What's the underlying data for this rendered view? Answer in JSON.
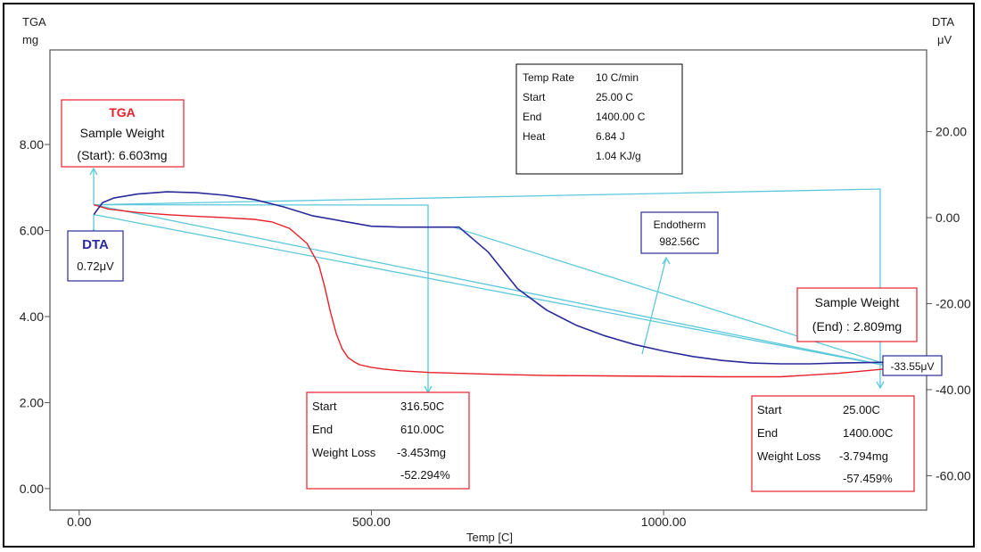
{
  "colors": {
    "tga": "#e8202a",
    "dta": "#2a2a9a",
    "leader": "#5cc8dc",
    "axis": "#555555",
    "frame": "#000000"
  },
  "chart_data": {
    "type": "line",
    "xlabel": "Temp  [C]",
    "ylabel": "TGA",
    "ylabel_unit": "mg",
    "y2label": "DTA",
    "y2label_unit": "μV",
    "xlim": [
      -50,
      1450
    ],
    "ylim": [
      -0.5,
      10.2
    ],
    "y2lim": [
      -68,
      39
    ],
    "x_ticks": [
      0,
      500,
      1000
    ],
    "x_tick_labels": [
      "0.00",
      "500.00",
      "1000.00"
    ],
    "y_ticks": [
      0,
      2,
      4,
      6,
      8
    ],
    "y_tick_labels": [
      "0.00",
      "2.00",
      "4.00",
      "6.00",
      "8.00"
    ],
    "y2_ticks": [
      20,
      0,
      -20,
      -40,
      -60
    ],
    "y2_tick_labels": [
      "20.00",
      "0.00",
      "-20.00",
      "-40.00",
      "-60.00"
    ],
    "grid": false,
    "series": [
      {
        "name": "TGA",
        "axis": "left",
        "x": [
          25,
          50,
          100,
          150,
          200,
          250,
          300,
          330,
          360,
          390,
          410,
          420,
          430,
          440,
          450,
          460,
          470,
          480,
          500,
          520,
          550,
          600,
          700,
          800,
          900,
          1000,
          1100,
          1200,
          1300,
          1400
        ],
        "values": [
          6.6,
          6.5,
          6.42,
          6.37,
          6.33,
          6.3,
          6.26,
          6.2,
          6.05,
          5.7,
          5.2,
          4.7,
          4.1,
          3.6,
          3.25,
          3.05,
          2.95,
          2.88,
          2.82,
          2.78,
          2.74,
          2.7,
          2.66,
          2.63,
          2.62,
          2.61,
          2.6,
          2.6,
          2.68,
          2.81
        ]
      },
      {
        "name": "DTA",
        "axis": "right",
        "x": [
          25,
          40,
          60,
          100,
          150,
          200,
          250,
          300,
          350,
          400,
          450,
          500,
          550,
          600,
          650,
          700,
          750,
          800,
          850,
          900,
          950,
          1000,
          1050,
          1100,
          1150,
          1200,
          1250,
          1300,
          1350,
          1400
        ],
        "values": [
          0.72,
          3.5,
          4.6,
          5.5,
          6.0,
          5.8,
          5.2,
          4.2,
          2.5,
          0.4,
          -0.8,
          -2.0,
          -2.2,
          -2.2,
          -2.2,
          -8.0,
          -16.5,
          -21.5,
          -25.0,
          -27.5,
          -29.5,
          -31.0,
          -32.3,
          -33.2,
          -33.8,
          -34.0,
          -34.0,
          -33.8,
          -33.7,
          -33.55
        ]
      }
    ],
    "annotations": {
      "tga_start": {
        "title": "TGA",
        "line1": "Sample Weight",
        "line2": "(Start): 6.603mg"
      },
      "dta_start": {
        "title": "DTA",
        "value": "0.72μV"
      },
      "info": {
        "rows": [
          [
            "Temp Rate",
            "10 C/min"
          ],
          [
            "Start",
            "25.00 C"
          ],
          [
            "End",
            "1400.00 C"
          ],
          [
            "Heat",
            "6.84 J"
          ],
          [
            "",
            "1.04 KJ/g"
          ]
        ]
      },
      "endotherm": {
        "line1": "Endotherm",
        "line2": "982.56C"
      },
      "sample_end": {
        "line1": "Sample Weight",
        "line2": "(End) :  2.809mg"
      },
      "dta_end": {
        "value": "-33.55μV"
      },
      "step1": {
        "start_label": "Start",
        "start_value": "316.50C",
        "end_label": "End",
        "end_value": "610.00C",
        "loss_label": "Weight Loss",
        "loss_value": "-3.453mg",
        "loss_pct": "-52.294%"
      },
      "step2": {
        "start_label": "Start",
        "start_value": "25.00C",
        "end_label": "End",
        "end_value": "1400.00C",
        "loss_label": "Weight Loss",
        "loss_value": "-3.794mg",
        "loss_pct": "-57.459%"
      }
    }
  }
}
